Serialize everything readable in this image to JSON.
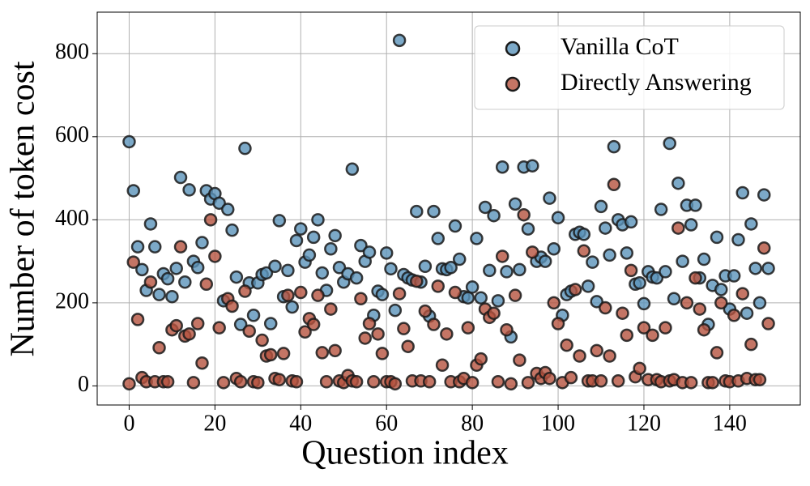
{
  "chart_data": {
    "type": "scatter",
    "xlabel": "Question index",
    "ylabel": "Number of token cost",
    "x": [
      0,
      1,
      2,
      3,
      4,
      5,
      6,
      7,
      8,
      9,
      10,
      11,
      12,
      13,
      14,
      15,
      16,
      17,
      18,
      19,
      20,
      21,
      22,
      23,
      24,
      25,
      26,
      27,
      28,
      29,
      30,
      31,
      32,
      33,
      34,
      35,
      36,
      37,
      38,
      39,
      40,
      41,
      42,
      43,
      44,
      45,
      46,
      47,
      48,
      49,
      50,
      51,
      52,
      53,
      54,
      55,
      56,
      57,
      58,
      59,
      60,
      61,
      62,
      63,
      64,
      65,
      66,
      67,
      68,
      69,
      70,
      71,
      72,
      73,
      74,
      75,
      76,
      77,
      78,
      79,
      80,
      81,
      82,
      83,
      84,
      85,
      86,
      87,
      88,
      89,
      90,
      91,
      92,
      93,
      94,
      95,
      96,
      97,
      98,
      99,
      100,
      101,
      102,
      103,
      104,
      105,
      106,
      107,
      108,
      109,
      110,
      111,
      112,
      113,
      114,
      115,
      116,
      117,
      118,
      119,
      120,
      121,
      122,
      123,
      124,
      125,
      126,
      127,
      128,
      129,
      130,
      131,
      132,
      133,
      134,
      135,
      136,
      137,
      138,
      139,
      140,
      141,
      142,
      143,
      144,
      145,
      146,
      147,
      148,
      149
    ],
    "series": [
      {
        "name": "Vanilla CoT",
        "color": "#5b93ba",
        "values": [
          588,
          470,
          335,
          280,
          230,
          390,
          335,
          220,
          270,
          258,
          215,
          283,
          502,
          250,
          472,
          300,
          285,
          345,
          470,
          450,
          463,
          440,
          205,
          425,
          375,
          262,
          148,
          572,
          248,
          170,
          248,
          268,
          272,
          150,
          288,
          398,
          215,
          278,
          190,
          350,
          378,
          298,
          315,
          358,
          400,
          272,
          230,
          330,
          362,
          285,
          250,
          270,
          522,
          260,
          338,
          300,
          322,
          170,
          228,
          220,
          320,
          282,
          182,
          832,
          268,
          260,
          255,
          420,
          250,
          288,
          168,
          420,
          355,
          282,
          280,
          285,
          385,
          305,
          215,
          212,
          238,
          355,
          212,
          430,
          278,
          410,
          205,
          527,
          275,
          118,
          438,
          280,
          527,
          378,
          530,
          300,
          310,
          300,
          452,
          330,
          405,
          170,
          220,
          228,
          365,
          370,
          365,
          240,
          298,
          203,
          432,
          380,
          315,
          576,
          400,
          388,
          320,
          395,
          245,
          248,
          198,
          275,
          262,
          260,
          425,
          275,
          584,
          210,
          488,
          300,
          435,
          388,
          435,
          260,
          305,
          148,
          242,
          358,
          232,
          265,
          185,
          265,
          352,
          465,
          175,
          390,
          283,
          200,
          460,
          283
        ]
      },
      {
        "name": "Directly Answering",
        "color": "#b5533f",
        "values": [
          5,
          298,
          160,
          20,
          10,
          250,
          10,
          92,
          10,
          10,
          135,
          145,
          335,
          120,
          125,
          8,
          150,
          55,
          245,
          400,
          312,
          140,
          8,
          210,
          192,
          18,
          10,
          228,
          132,
          10,
          8,
          110,
          72,
          75,
          18,
          15,
          78,
          218,
          12,
          10,
          225,
          130,
          162,
          148,
          218,
          80,
          10,
          185,
          85,
          12,
          8,
          25,
          12,
          10,
          210,
          115,
          150,
          10,
          125,
          78,
          10,
          10,
          5,
          222,
          138,
          95,
          12,
          252,
          12,
          180,
          10,
          148,
          240,
          50,
          125,
          10,
          225,
          10,
          18,
          140,
          8,
          50,
          65,
          185,
          165,
          175,
          10,
          312,
          135,
          5,
          218,
          62,
          412,
          8,
          322,
          30,
          18,
          32,
          18,
          200,
          150,
          8,
          98,
          20,
          232,
          72,
          325,
          12,
          12,
          85,
          12,
          188,
          72,
          485,
          12,
          175,
          122,
          278,
          22,
          42,
          140,
          15,
          122,
          15,
          10,
          140,
          12,
          15,
          380,
          8,
          200,
          8,
          260,
          185,
          135,
          8,
          8,
          80,
          200,
          12,
          10,
          170,
          12,
          222,
          18,
          100,
          15,
          15,
          332,
          150
        ]
      }
    ],
    "xlim": [
      -7.45,
      156.45
    ],
    "ylim": [
      -46,
      900
    ],
    "xticks": [
      0,
      20,
      40,
      60,
      80,
      100,
      120,
      140
    ],
    "yticks": [
      0,
      200,
      400,
      600,
      800
    ],
    "grid": true,
    "legend": "upper-right"
  }
}
